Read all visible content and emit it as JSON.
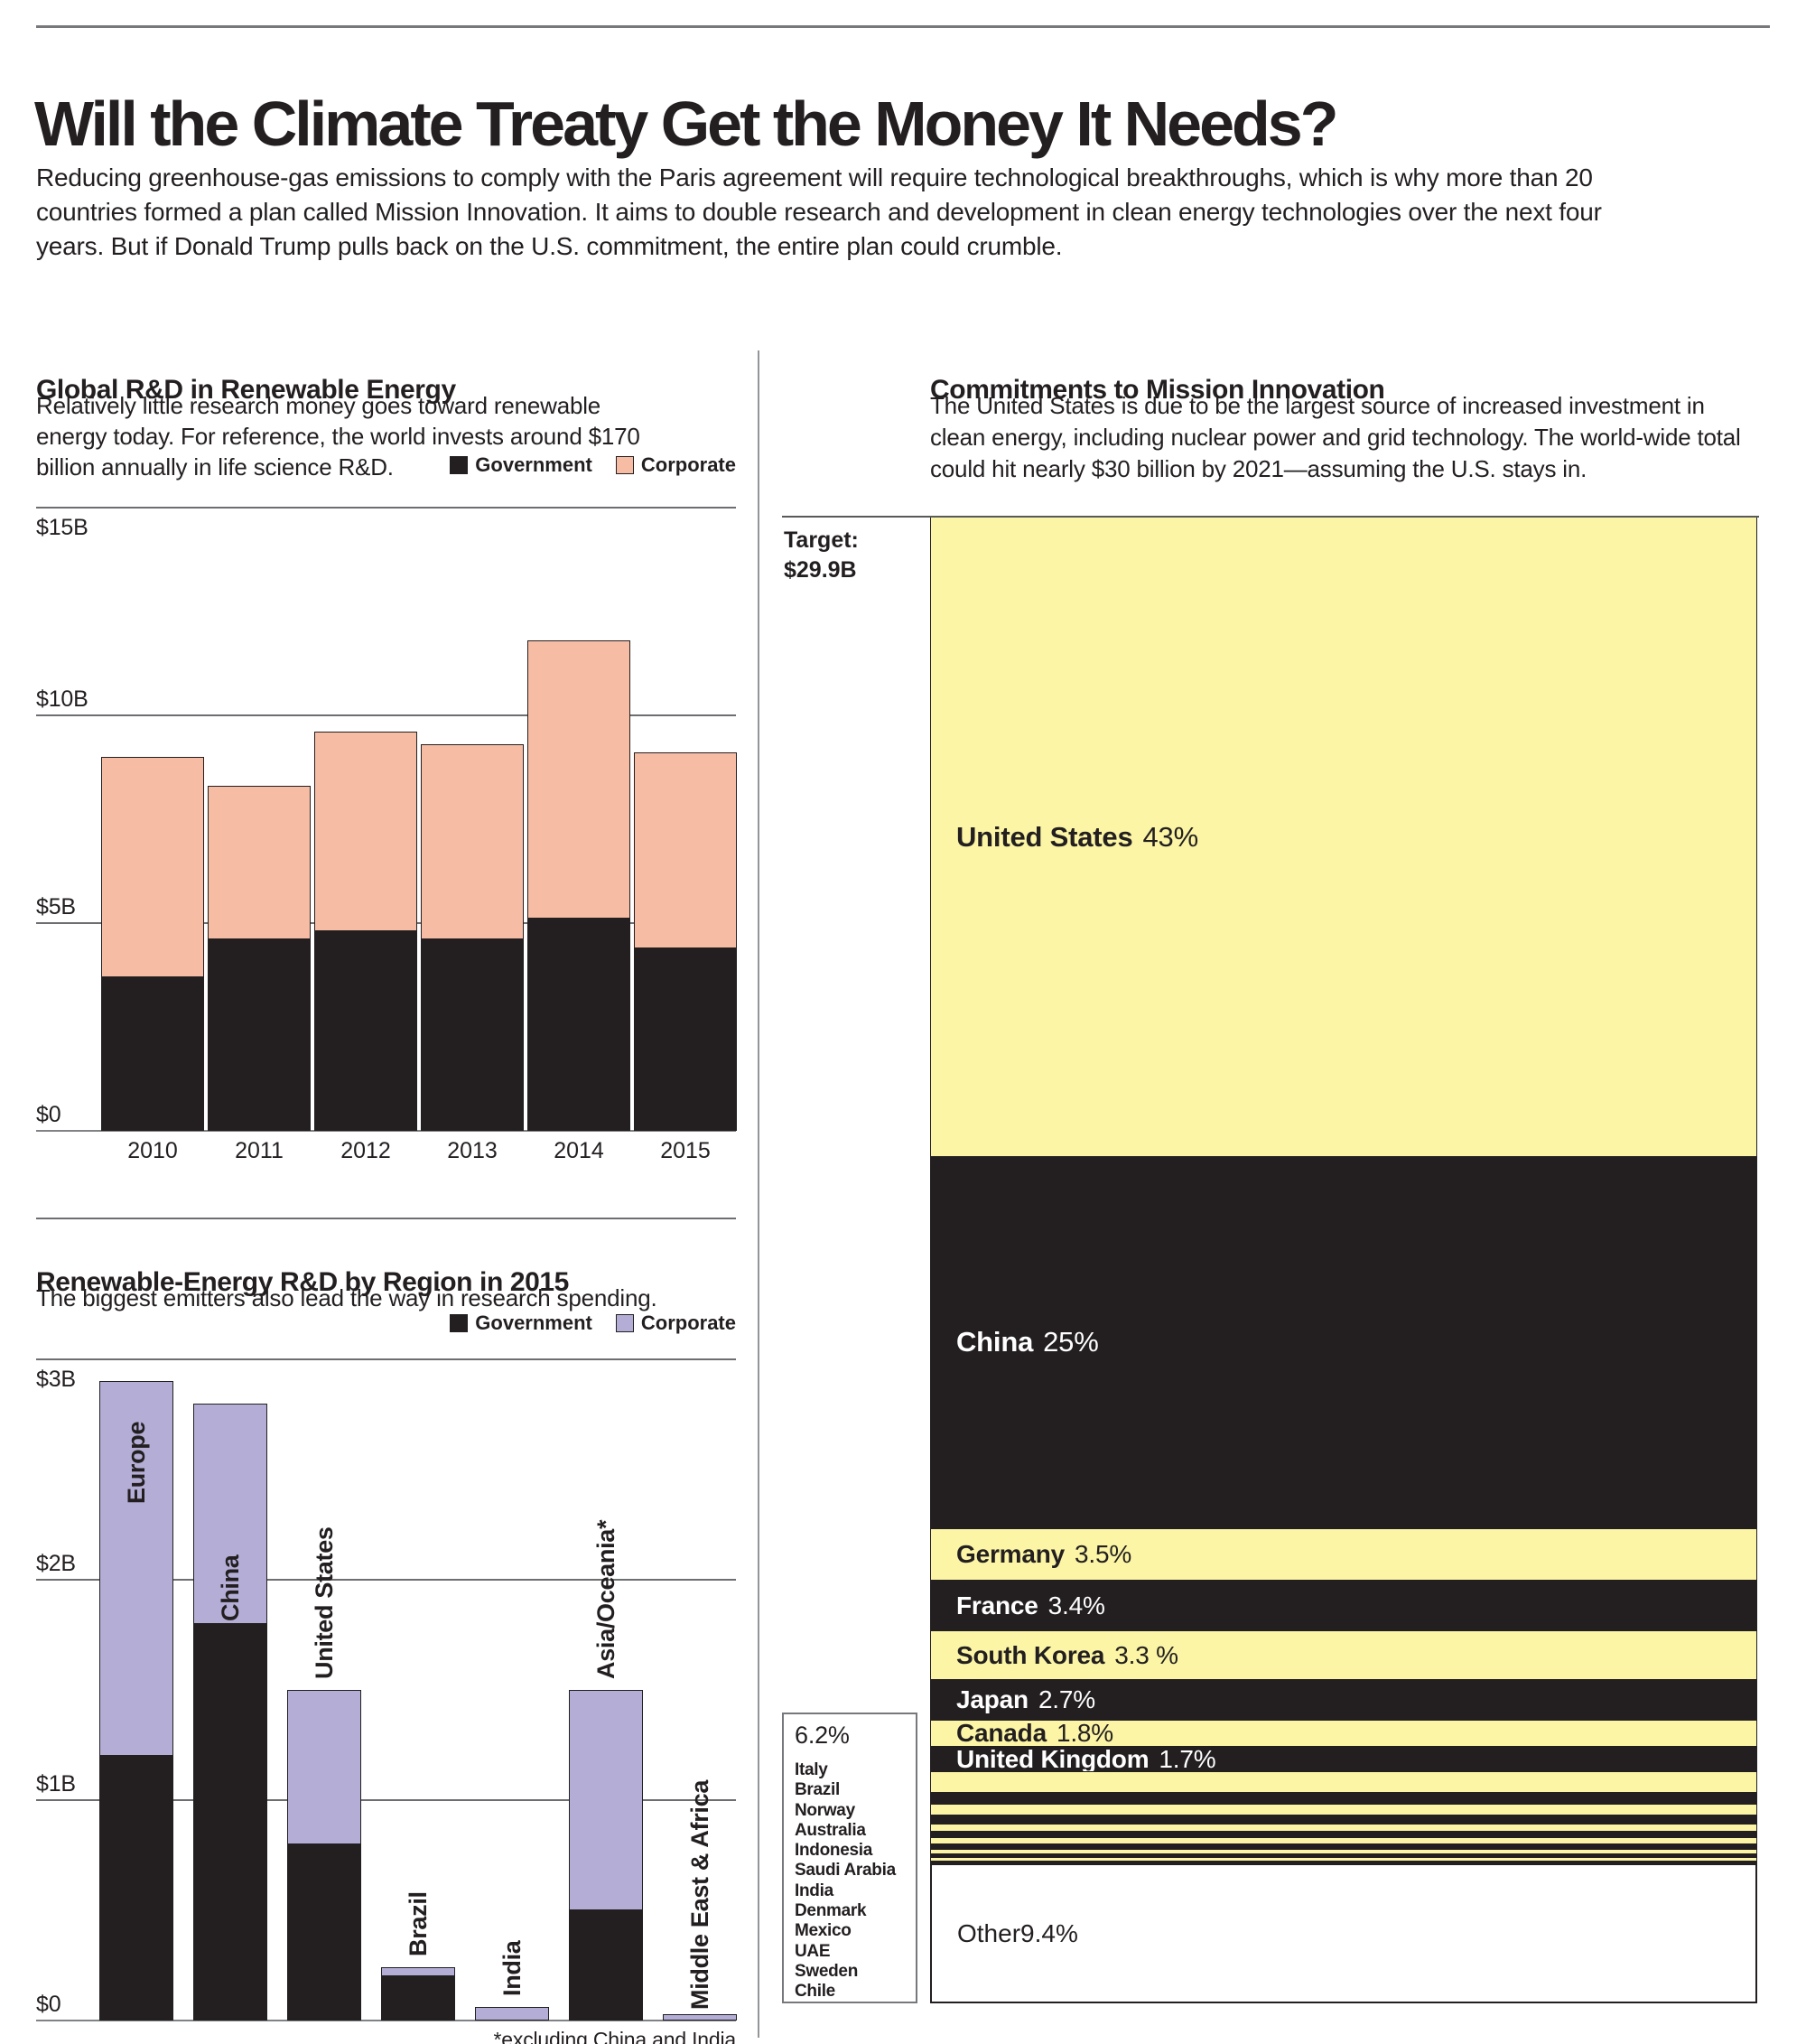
{
  "page": {
    "title": "Will the Climate Treaty Get the Money It Needs?",
    "intro": "Reducing greenhouse-gas emissions to comply with the Paris agreement will require technological breakthroughs, which is why more than 20 countries formed a plan called Mission Innovation. It aims to double research and development in clean energy technologies over the next four years. But if Donald Trump pulls back on the U.S. commitment, the entire plan could crumble."
  },
  "colors": {
    "ink": "#231f20",
    "government_black": "#231f20",
    "corporate_salmon": "#f7bda4",
    "corporate_lavender": "#b4aed7",
    "mission_yellow": "#fbf5a5",
    "grid_gray": "#6d6e71",
    "white": "#ffffff"
  },
  "chart_data": [
    {
      "type": "bar",
      "stacked": true,
      "title": "Global R&D in Renewable Energy",
      "subtitle": "Relatively little research money goes toward renewable energy today. For reference, the world invests around $170 billion annually in life science R&D.",
      "categories": [
        "2010",
        "2011",
        "2012",
        "2013",
        "2014",
        "2015"
      ],
      "series": [
        {
          "name": "Government",
          "color": "#231f20",
          "values": [
            3.7,
            4.6,
            4.8,
            4.6,
            5.1,
            4.4
          ]
        },
        {
          "name": "Corporate",
          "color": "#f7bda4",
          "values": [
            5.3,
            3.7,
            4.8,
            4.7,
            6.7,
            4.7
          ]
        }
      ],
      "unit": "$B",
      "ylim": [
        0,
        15
      ],
      "yticks": [
        {
          "label": "$15B",
          "value": 15,
          "below": true
        },
        {
          "label": "$10B",
          "value": 10
        },
        {
          "label": "$5B",
          "value": 5
        },
        {
          "label": "$0",
          "value": 0
        }
      ],
      "grid": true,
      "legend_position": "top-right"
    },
    {
      "type": "bar",
      "stacked": true,
      "title": "Renewable-Energy R&D by Region in 2015",
      "subtitle": "The biggest emitters also lead the way in research spending.",
      "categories": [
        "Europe",
        "China",
        "United States",
        "Brazil",
        "India",
        "Asia/Oceania*",
        "Middle East & Africa"
      ],
      "series": [
        {
          "name": "Government",
          "color": "#231f20",
          "values": [
            1.2,
            1.8,
            0.8,
            0.2,
            0,
            0.5,
            0
          ]
        },
        {
          "name": "Corporate",
          "color": "#b4aed7",
          "values": [
            1.7,
            1.0,
            0.7,
            0.04,
            0.06,
            1.0,
            0.03
          ]
        }
      ],
      "unit": "$B",
      "ylim": [
        0,
        3
      ],
      "yticks": [
        {
          "label": "$3B",
          "value": 3,
          "below": true
        },
        {
          "label": "$2B",
          "value": 2
        },
        {
          "label": "$1B",
          "value": 1
        },
        {
          "label": "$0",
          "value": 0
        }
      ],
      "grid": true,
      "legend_position": "top-right",
      "footnote": "*excluding China and India"
    },
    {
      "type": "stacked-column-100",
      "title": "Commitments to Mission Innovation",
      "subtitle": "The United States is due to be the largest source of increased investment in clean energy, including nuclear power and grid technology. The world-wide total could hit nearly $30 billion by 2021—assuming the U.S. stays in.",
      "target_label": "Target:",
      "target_value": "$29.9B",
      "segments": [
        {
          "name": "United States",
          "pct": 43,
          "pct_label": "43%",
          "fill": "yellow",
          "big": true
        },
        {
          "name": "China",
          "pct": 25,
          "pct_label": "25%",
          "fill": "black",
          "big": true
        },
        {
          "name": "Germany",
          "pct": 3.5,
          "pct_label": "3.5%",
          "fill": "yellow"
        },
        {
          "name": "France",
          "pct": 3.4,
          "pct_label": "3.4%",
          "fill": "black"
        },
        {
          "name": "South Korea",
          "pct": 3.3,
          "pct_label": "3.3 %",
          "fill": "yellow"
        },
        {
          "name": "Japan",
          "pct": 2.7,
          "pct_label": "2.7%",
          "fill": "black"
        },
        {
          "name": "Canada",
          "pct": 1.8,
          "pct_label": "1.8%",
          "fill": "yellow"
        },
        {
          "name": "United Kingdom",
          "pct": 1.7,
          "pct_label": "1.7%",
          "fill": "black"
        }
      ],
      "small_group": {
        "pct_label": "6.2%",
        "countries": [
          "Italy",
          "Brazil",
          "Norway",
          "Australia",
          "Indonesia",
          "Saudi Arabia",
          "India",
          "Denmark",
          "Mexico",
          "UAE",
          "Sweden",
          "Chile"
        ],
        "stripe_pcts": [
          1.35,
          0.8,
          0.75,
          0.6,
          0.5,
          0.45,
          0.4,
          0.35,
          0.3,
          0.25,
          0.25,
          0.2
        ]
      },
      "other": {
        "name": "Other",
        "pct": 9.4,
        "pct_label": "9.4%"
      }
    }
  ]
}
